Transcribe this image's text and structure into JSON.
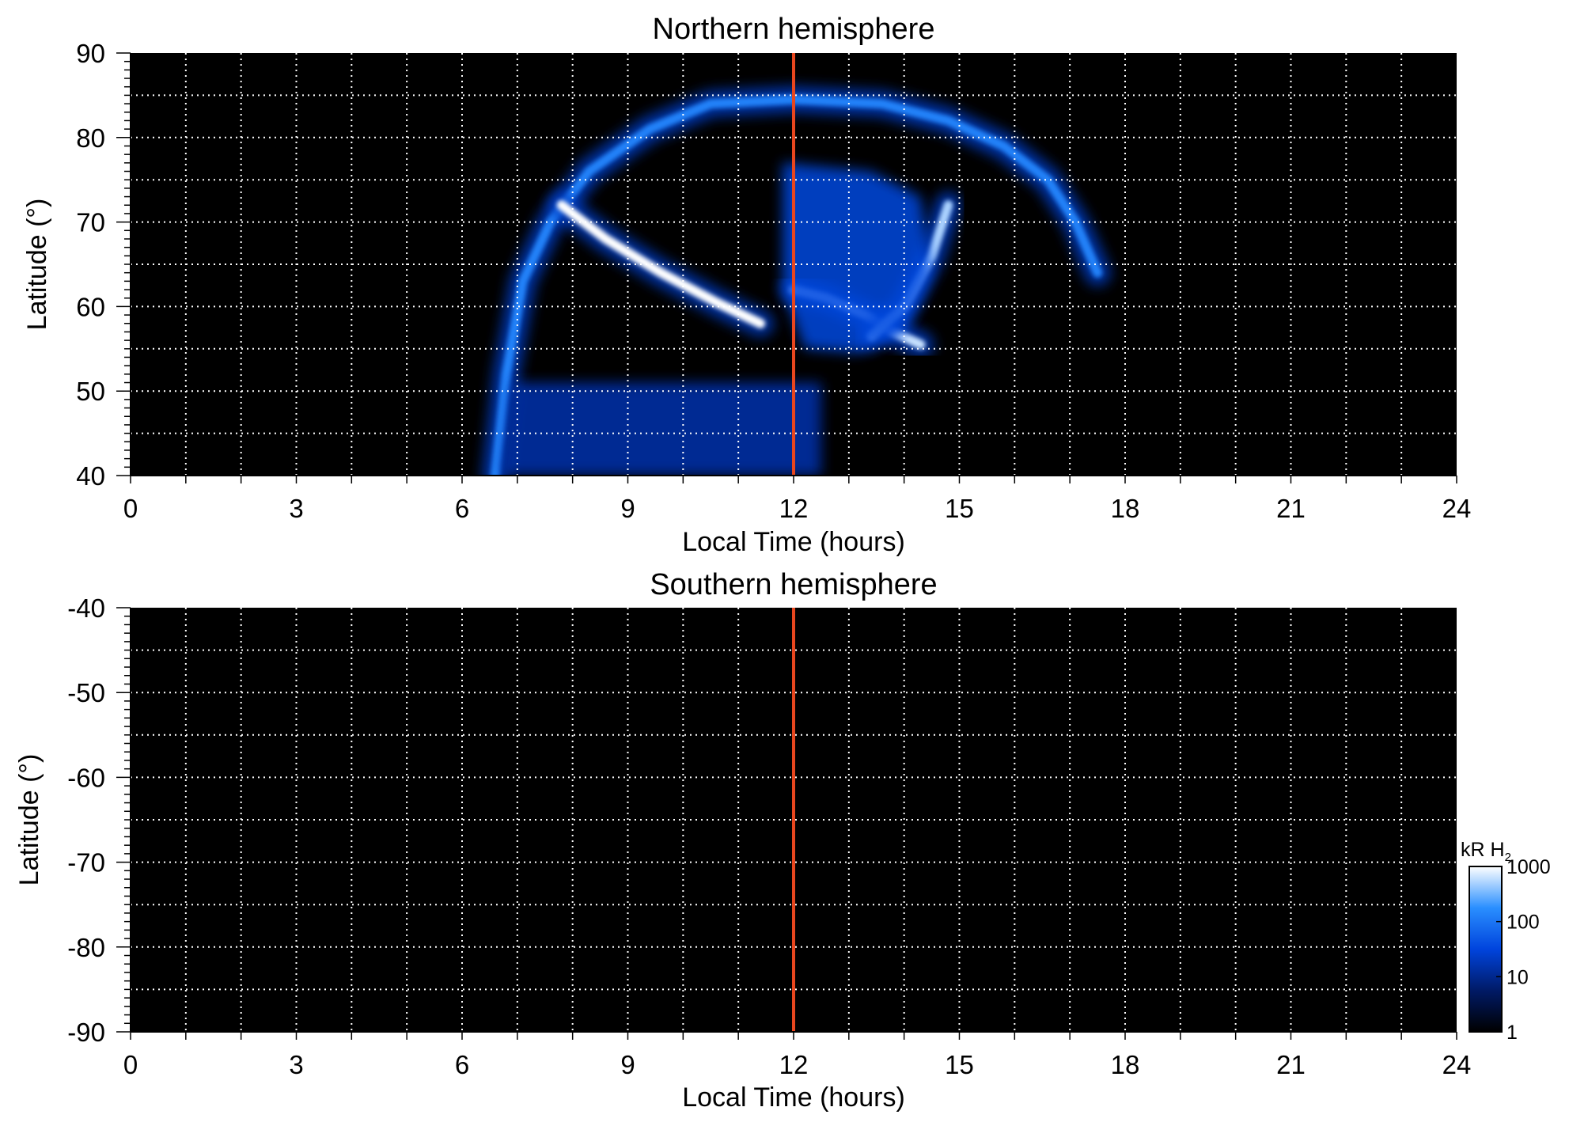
{
  "chart_data": [
    {
      "type": "heatmap",
      "title": "Northern hemisphere",
      "xlabel": "Local Time (hours)",
      "ylabel": "Latitude (°)",
      "xlim": [
        0,
        24
      ],
      "ylim": [
        40,
        90
      ],
      "xticks": [
        "0",
        "3",
        "6",
        "9",
        "12",
        "15",
        "18",
        "21",
        "24"
      ],
      "yticks": [
        "40",
        "50",
        "60",
        "70",
        "80",
        "90"
      ],
      "grid": true,
      "reference_line": {
        "x": 12,
        "color": "#e8461e"
      },
      "features": [
        {
          "name": "main-oval",
          "points": [
            [
              6.6,
              40
            ],
            [
              6.8,
              52
            ],
            [
              7.1,
              63
            ],
            [
              7.6,
              70
            ],
            [
              8.3,
              76
            ],
            [
              9.4,
              81
            ],
            [
              10.5,
              84
            ],
            [
              12.0,
              84.5
            ],
            [
              13.6,
              84
            ],
            [
              14.8,
              82
            ],
            [
              15.8,
              79
            ],
            [
              16.6,
              75
            ],
            [
              17.1,
              70
            ],
            [
              17.5,
              64
            ]
          ],
          "intensity": 0.55
        },
        {
          "name": "arc-dawn",
          "points": [
            [
              7.8,
              72
            ],
            [
              8.6,
              68
            ],
            [
              9.6,
              64
            ],
            [
              10.6,
              60.5
            ],
            [
              11.4,
              58
            ]
          ],
          "intensity": 1.0
        },
        {
          "name": "arc-noon",
          "points": [
            [
              12.0,
              62
            ],
            [
              12.6,
              61
            ],
            [
              13.3,
              59
            ],
            [
              13.8,
              57
            ],
            [
              14.3,
              55.5
            ]
          ],
          "intensity": 0.9
        },
        {
          "name": "arc-afternoon",
          "points": [
            [
              14.8,
              72
            ],
            [
              14.5,
              66
            ],
            [
              14.0,
              60
            ],
            [
              13.4,
              56.5
            ]
          ],
          "intensity": 0.85
        },
        {
          "name": "noon-patch",
          "points": [
            [
              11.8,
              77
            ],
            [
              13.4,
              76
            ],
            [
              14.3,
              73
            ],
            [
              14.5,
              64
            ],
            [
              14.0,
              57
            ],
            [
              13.2,
              54.5
            ],
            [
              12.2,
              55
            ],
            [
              11.8,
              62
            ]
          ],
          "intensity": 0.45
        },
        {
          "name": "noise-band",
          "points": [
            [
              6.7,
              40
            ],
            [
              12.5,
              40
            ],
            [
              12.5,
              51
            ],
            [
              6.9,
              51
            ]
          ],
          "intensity": 0.25
        }
      ]
    },
    {
      "type": "heatmap",
      "title": "Southern hemisphere",
      "xlabel": "Local Time (hours)",
      "ylabel": "Latitude (°)",
      "xlim": [
        0,
        24
      ],
      "ylim": [
        -90,
        -40
      ],
      "xticks": [
        "0",
        "3",
        "6",
        "9",
        "12",
        "15",
        "18",
        "21",
        "24"
      ],
      "yticks": [
        "-90",
        "-80",
        "-70",
        "-60",
        "-50",
        "-40"
      ],
      "grid": true,
      "reference_line": {
        "x": 12,
        "color": "#e8461e"
      }
    }
  ],
  "colorbar": {
    "label": "kR H",
    "label_subscript": "2",
    "scale": "log",
    "ticks": [
      "1",
      "10",
      "100",
      "1000"
    ],
    "colors": [
      "#000000",
      "#001a66",
      "#0044dd",
      "#2a8fff",
      "#ffffff"
    ]
  }
}
